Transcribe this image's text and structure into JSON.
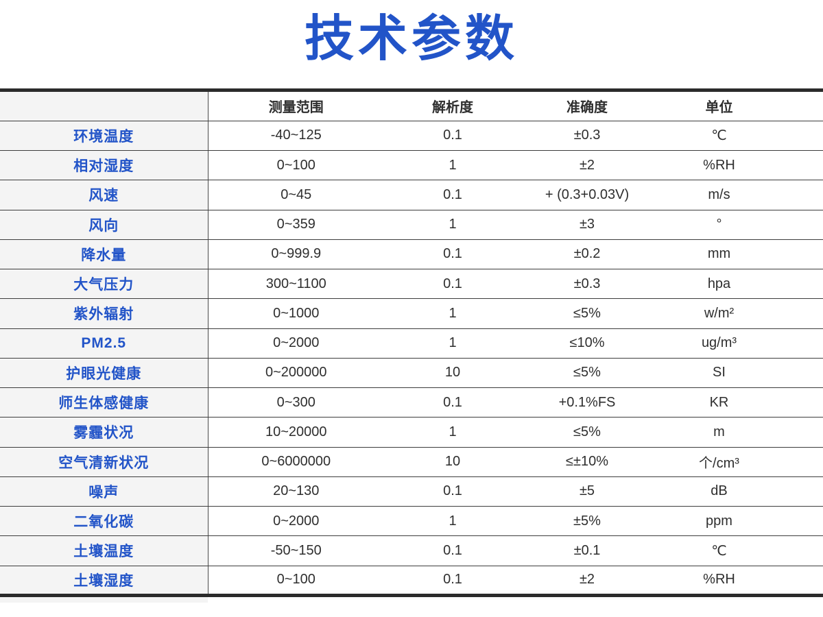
{
  "page": {
    "title": "技术参数"
  },
  "colors": {
    "accent_blue": "#2254c8",
    "label_background": "#f4f4f4",
    "thick_rule": "#2b2b2b",
    "thin_rule": "#3c3c3c",
    "data_text": "#2e2e2e"
  },
  "table": {
    "columns": [
      "",
      "测量范围",
      "解析度",
      "准确度",
      "单位"
    ],
    "rows": [
      {
        "label": "环境温度",
        "range": "-40~125",
        "resolution": "0.1",
        "accuracy": "±0.3",
        "unit": "℃"
      },
      {
        "label": "相对湿度",
        "range": "0~100",
        "resolution": "1",
        "accuracy": "±2",
        "unit": "%RH"
      },
      {
        "label": "风速",
        "range": "0~45",
        "resolution": "0.1",
        "accuracy": "+ (0.3+0.03V)",
        "unit": "m/s"
      },
      {
        "label": "风向",
        "range": "0~359",
        "resolution": "1",
        "accuracy": "±3",
        "unit": "°"
      },
      {
        "label": "降水量",
        "range": "0~999.9",
        "resolution": "0.1",
        "accuracy": "±0.2",
        "unit": "mm"
      },
      {
        "label": "大气压力",
        "range": "300~1100",
        "resolution": "0.1",
        "accuracy": "±0.3",
        "unit": "hpa"
      },
      {
        "label": "紫外辐射",
        "range": "0~1000",
        "resolution": "1",
        "accuracy": "≤5%",
        "unit": "w/m²"
      },
      {
        "label": "PM2.5",
        "range": "0~2000",
        "resolution": "1",
        "accuracy": "≤10%",
        "unit": "ug/m³"
      },
      {
        "label": "护眼光健康",
        "range": "0~200000",
        "resolution": "10",
        "accuracy": "≤5%",
        "unit": "SI"
      },
      {
        "label": "师生体感健康",
        "range": "0~300",
        "resolution": "0.1",
        "accuracy": "+0.1%FS",
        "unit": "KR"
      },
      {
        "label": "雾霾状况",
        "range": "10~20000",
        "resolution": "1",
        "accuracy": "≤5%",
        "unit": "m"
      },
      {
        "label": "空气清新状况",
        "range": "0~6000000",
        "resolution": "10",
        "accuracy": "≤±10%",
        "unit": "个/cm³"
      },
      {
        "label": "噪声",
        "range": "20~130",
        "resolution": "0.1",
        "accuracy": "±5",
        "unit": "dB"
      },
      {
        "label": "二氧化碳",
        "range": "0~2000",
        "resolution": "1",
        "accuracy": "±5%",
        "unit": "ppm"
      },
      {
        "label": "土壤温度",
        "range": "-50~150",
        "resolution": "0.1",
        "accuracy": "±0.1",
        "unit": "℃"
      },
      {
        "label": "土壤湿度",
        "range": "0~100",
        "resolution": "0.1",
        "accuracy": "±2",
        "unit": "%RH"
      }
    ]
  }
}
